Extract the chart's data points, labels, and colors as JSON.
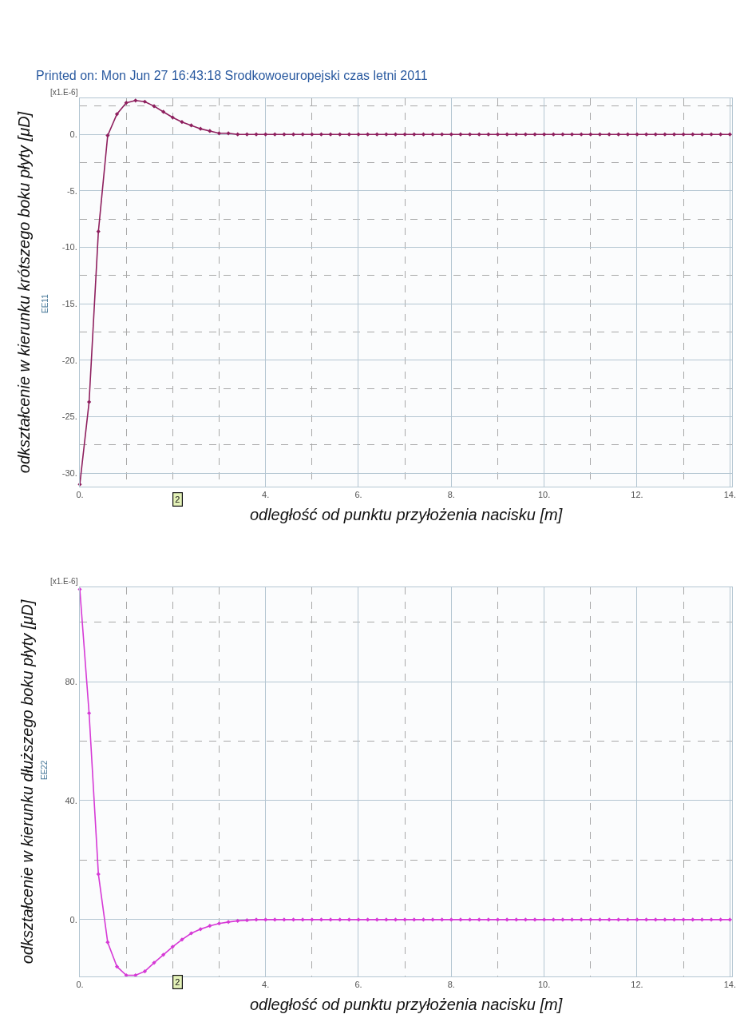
{
  "chart_data": [
    {
      "type": "line",
      "title": "Printed on: Mon Jun 27 16:43:18 Srodkowoeuropejski czas letni 2011",
      "xlabel": "odległość od punktu przyłożenia nacisku [m]",
      "ylabel": "odkształcenie w kierunku krótszego boku płyty [μD]",
      "annotations": [
        "[x1.E-6]",
        "EE11",
        "2"
      ],
      "x": [
        0,
        0.2,
        0.4,
        0.6,
        0.8,
        1,
        1.2,
        1.4,
        1.6,
        1.8,
        2,
        2.2,
        2.4,
        2.6,
        2.8,
        3,
        3.2,
        3.4,
        3.6,
        3.8,
        4,
        4.2,
        4.4,
        4.6,
        4.8,
        5,
        5.2,
        5.4,
        5.6,
        5.8,
        6,
        6.2,
        6.4,
        6.6,
        6.8,
        7,
        7.2,
        7.4,
        7.6,
        7.8,
        8,
        8.2,
        8.4,
        8.6,
        8.8,
        9,
        9.2,
        9.4,
        9.6,
        9.8,
        10,
        10.2,
        10.4,
        10.6,
        10.8,
        11,
        11.2,
        11.4,
        11.6,
        11.8,
        12,
        12.2,
        12.4,
        12.6,
        12.8,
        13,
        13.2,
        13.4,
        13.6,
        13.8,
        14
      ],
      "series": [
        {
          "color": "#8e1f5e",
          "values": [
            -31,
            -23.7,
            -8.6,
            -0.1,
            1.8,
            2.8,
            3.0,
            2.9,
            2.5,
            2.0,
            1.5,
            1.1,
            0.8,
            0.5,
            0.3,
            0.1,
            0.1,
            0,
            0,
            0,
            0,
            0,
            0,
            0,
            0,
            0,
            0,
            0,
            0,
            0,
            0,
            0,
            0,
            0,
            0,
            0,
            0,
            0,
            0,
            0,
            0,
            0,
            0,
            0,
            0,
            0,
            0,
            0,
            0,
            0,
            0,
            0,
            0,
            0,
            0,
            0,
            0,
            0,
            0,
            0,
            0,
            0,
            0,
            0,
            0,
            0,
            0,
            0,
            0,
            0,
            0
          ]
        }
      ],
      "xlim": [
        0,
        14.05
      ],
      "ylim": [
        -31.2,
        3.2
      ],
      "xticks": [
        {
          "value": 0,
          "label": "0."
        },
        {
          "value": 1,
          "label": null
        },
        {
          "value": 2,
          "label": null
        },
        {
          "value": 3,
          "label": null
        },
        {
          "value": 4,
          "label": "4."
        },
        {
          "value": 5,
          "label": null
        },
        {
          "value": 6,
          "label": "6."
        },
        {
          "value": 7,
          "label": null
        },
        {
          "value": 8,
          "label": "8."
        },
        {
          "value": 9,
          "label": null
        },
        {
          "value": 10,
          "label": "10."
        },
        {
          "value": 11,
          "label": null
        },
        {
          "value": 12,
          "label": "12."
        },
        {
          "value": 13,
          "label": null
        },
        {
          "value": 14,
          "label": "14."
        }
      ],
      "yticks": [
        {
          "value": -30,
          "label": "-30."
        },
        {
          "value": -27.5,
          "label": null
        },
        {
          "value": -25,
          "label": "-25."
        },
        {
          "value": -22.5,
          "label": null
        },
        {
          "value": -20,
          "label": "-20."
        },
        {
          "value": -17.5,
          "label": null
        },
        {
          "value": -15,
          "label": "-15."
        },
        {
          "value": -12.5,
          "label": null
        },
        {
          "value": -10,
          "label": "-10."
        },
        {
          "value": -7.5,
          "label": null
        },
        {
          "value": -5,
          "label": "-5."
        },
        {
          "value": -2.5,
          "label": null
        },
        {
          "value": 0,
          "label": "0."
        },
        {
          "value": 2.5,
          "label": null
        }
      ],
      "grid": true,
      "marker": "diamond",
      "line_style": "solid"
    },
    {
      "type": "line",
      "xlabel": "odległość od punktu przyłożenia nacisku [m]",
      "ylabel": "odkształcenie w kierunku dłuższego boku płyty [μD]",
      "annotations": [
        "[x1.E-6]",
        "EE22",
        "2"
      ],
      "x": [
        0,
        0.2,
        0.4,
        0.6,
        0.8,
        1,
        1.2,
        1.4,
        1.6,
        1.8,
        2,
        2.2,
        2.4,
        2.6,
        2.8,
        3,
        3.2,
        3.4,
        3.6,
        3.8,
        4,
        4.2,
        4.4,
        4.6,
        4.8,
        5,
        5.2,
        5.4,
        5.6,
        5.8,
        6,
        6.2,
        6.4,
        6.6,
        6.8,
        7,
        7.2,
        7.4,
        7.6,
        7.8,
        8,
        8.2,
        8.4,
        8.6,
        8.8,
        9,
        9.2,
        9.4,
        9.6,
        9.8,
        10,
        10.2,
        10.4,
        10.6,
        10.8,
        11,
        11.2,
        11.4,
        11.6,
        11.8,
        12,
        12.2,
        12.4,
        12.6,
        12.8,
        13,
        13.2,
        13.4,
        13.6,
        13.8,
        14
      ],
      "series": [
        {
          "color": "#d63ad6",
          "values": [
            111,
            69.4,
            15.3,
            -7.6,
            -15.8,
            -18.7,
            -18.7,
            -17.4,
            -14.5,
            -11.8,
            -9.1,
            -6.7,
            -4.6,
            -3.2,
            -2.1,
            -1.3,
            -0.8,
            -0.4,
            -0.2,
            0,
            0,
            0,
            0,
            0,
            0,
            0,
            0,
            0,
            0,
            0,
            0,
            0,
            0,
            0,
            0,
            0,
            0,
            0,
            0,
            0,
            0,
            0,
            0,
            0,
            0,
            0,
            0,
            0,
            0,
            0,
            0,
            0,
            0,
            0,
            0,
            0,
            0,
            0,
            0,
            0,
            0,
            0,
            0,
            0,
            0,
            0,
            0,
            0,
            0,
            0,
            0
          ]
        }
      ],
      "xlim": [
        0,
        14.05
      ],
      "ylim": [
        -19.1,
        111.7
      ],
      "xticks": [
        {
          "value": 0,
          "label": "0."
        },
        {
          "value": 1,
          "label": null
        },
        {
          "value": 2,
          "label": null
        },
        {
          "value": 3,
          "label": null
        },
        {
          "value": 4,
          "label": "4."
        },
        {
          "value": 5,
          "label": null
        },
        {
          "value": 6,
          "label": "6."
        },
        {
          "value": 7,
          "label": null
        },
        {
          "value": 8,
          "label": "8."
        },
        {
          "value": 9,
          "label": null
        },
        {
          "value": 10,
          "label": "10."
        },
        {
          "value": 11,
          "label": null
        },
        {
          "value": 12,
          "label": "12."
        },
        {
          "value": 13,
          "label": null
        },
        {
          "value": 14,
          "label": "14."
        }
      ],
      "yticks": [
        {
          "value": 0,
          "label": "0."
        },
        {
          "value": 20,
          "label": null
        },
        {
          "value": 40,
          "label": "40."
        },
        {
          "value": 60,
          "label": null
        },
        {
          "value": 80,
          "label": "80."
        },
        {
          "value": 100,
          "label": null
        }
      ],
      "grid": true,
      "marker": "diamond",
      "line_style": "solid"
    }
  ]
}
